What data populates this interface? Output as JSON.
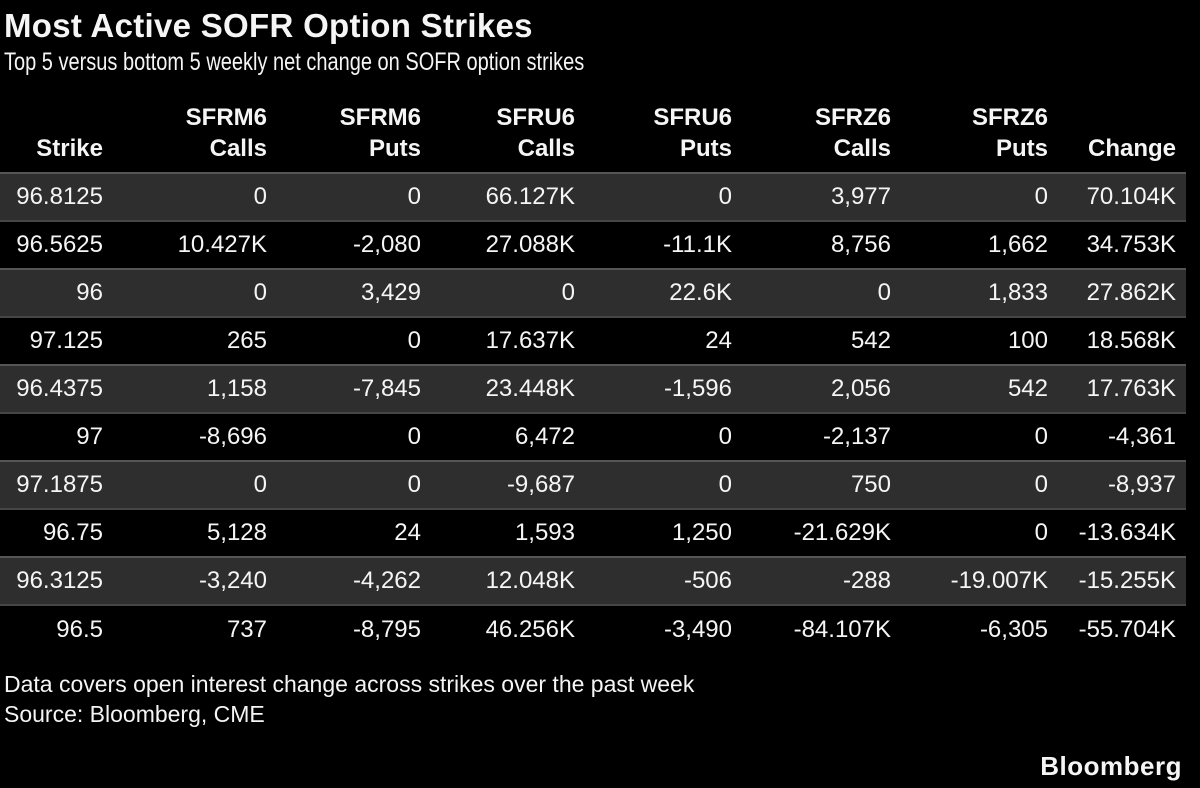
{
  "title": "Most Active SOFR Option Strikes",
  "subtitle": "Top 5 versus bottom 5 weekly net change on SOFR option strikes",
  "chart_data": {
    "type": "table",
    "title": "Most Active SOFR Option Strikes",
    "subtitle": "Top 5 versus bottom 5 weekly net change on SOFR option strikes",
    "columns": [
      "Strike",
      "SFRM6 Calls",
      "SFRM6 Puts",
      "SFRU6 Calls",
      "SFRU6 Puts",
      "SFRZ6 Calls",
      "SFRZ6 Puts",
      "Change"
    ],
    "rows": [
      [
        "96.8125",
        "0",
        "0",
        "66.127K",
        "0",
        "3,977",
        "0",
        "70.104K"
      ],
      [
        "96.5625",
        "10.427K",
        "-2,080",
        "27.088K",
        "-11.1K",
        "8,756",
        "1,662",
        "34.753K"
      ],
      [
        "96",
        "0",
        "3,429",
        "0",
        "22.6K",
        "0",
        "1,833",
        "27.862K"
      ],
      [
        "97.125",
        "265",
        "0",
        "17.637K",
        "24",
        "542",
        "100",
        "18.568K"
      ],
      [
        "96.4375",
        "1,158",
        "-7,845",
        "23.448K",
        "-1,596",
        "2,056",
        "542",
        "17.763K"
      ],
      [
        "97",
        "-8,696",
        "0",
        "6,472",
        "0",
        "-2,137",
        "0",
        "-4,361"
      ],
      [
        "97.1875",
        "0",
        "0",
        "-9,687",
        "0",
        "750",
        "0",
        "-8,937"
      ],
      [
        "96.75",
        "5,128",
        "24",
        "1,593",
        "1,250",
        "-21.629K",
        "0",
        "-13.634K"
      ],
      [
        "96.3125",
        "-3,240",
        "-4,262",
        "12.048K",
        "-506",
        "-288",
        "-19.007K",
        "-15.255K"
      ],
      [
        "96.5",
        "737",
        "-8,795",
        "46.256K",
        "-3,490",
        "-84.107K",
        "-6,305",
        "-55.704K"
      ]
    ]
  },
  "table": {
    "header_lines": [
      {
        "line1": "",
        "line2": "Strike"
      },
      {
        "line1": "SFRM6",
        "line2": "Calls"
      },
      {
        "line1": "SFRM6",
        "line2": "Puts"
      },
      {
        "line1": "SFRU6",
        "line2": "Calls"
      },
      {
        "line1": "SFRU6",
        "line2": "Puts"
      },
      {
        "line1": "SFRZ6",
        "line2": "Calls"
      },
      {
        "line1": "SFRZ6",
        "line2": "Puts"
      },
      {
        "line1": "",
        "line2": "Change"
      }
    ]
  },
  "footnotes": {
    "coverage": "Data covers open interest change across strikes over the past week",
    "source": "Source: Bloomberg, CME"
  },
  "brand": "Bloomberg",
  "colors": {
    "background": "#000000",
    "row_stripe": "#2e2e2e",
    "row_separator": "#565656",
    "text": "#f5f5f5"
  }
}
